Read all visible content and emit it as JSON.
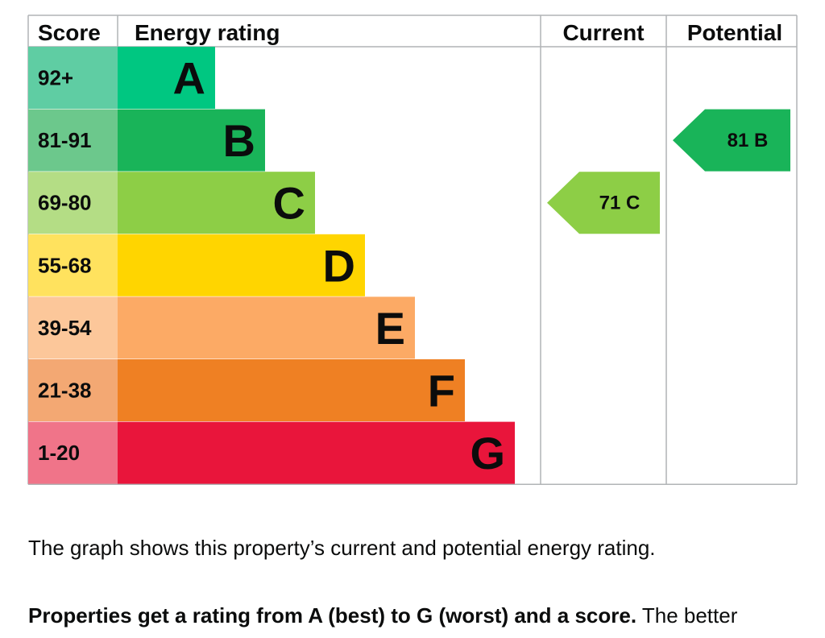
{
  "chart_data": {
    "type": "table",
    "columns": [
      "Score",
      "Energy rating",
      "Current",
      "Potential"
    ],
    "bands": [
      {
        "score": "92+",
        "letter": "A",
        "color": "#00c781",
        "score_bg": "#5fcda3"
      },
      {
        "score": "81-91",
        "letter": "B",
        "color": "#19b459",
        "score_bg": "#6cc88c"
      },
      {
        "score": "69-80",
        "letter": "C",
        "color": "#8dce46",
        "score_bg": "#b4dd85"
      },
      {
        "score": "55-68",
        "letter": "D",
        "color": "#ffd500",
        "score_bg": "#ffe25e"
      },
      {
        "score": "39-54",
        "letter": "E",
        "color": "#fcaa65",
        "score_bg": "#fcc79a"
      },
      {
        "score": "21-38",
        "letter": "F",
        "color": "#ef8023",
        "score_bg": "#f3a873"
      },
      {
        "score": "1-20",
        "letter": "G",
        "color": "#e9153b",
        "score_bg": "#f07489"
      }
    ],
    "current": {
      "score": 71,
      "letter": "C",
      "label": "71  C",
      "color": "#8dce46"
    },
    "potential": {
      "score": 81,
      "letter": "B",
      "label": "81  B",
      "color": "#19b459"
    }
  },
  "text": {
    "intro": "The graph shows this property’s current and potential energy rating.",
    "rating_bold": "Properties get a rating from A (best) to G (worst) and a score.",
    "rating_rest": " The better"
  }
}
